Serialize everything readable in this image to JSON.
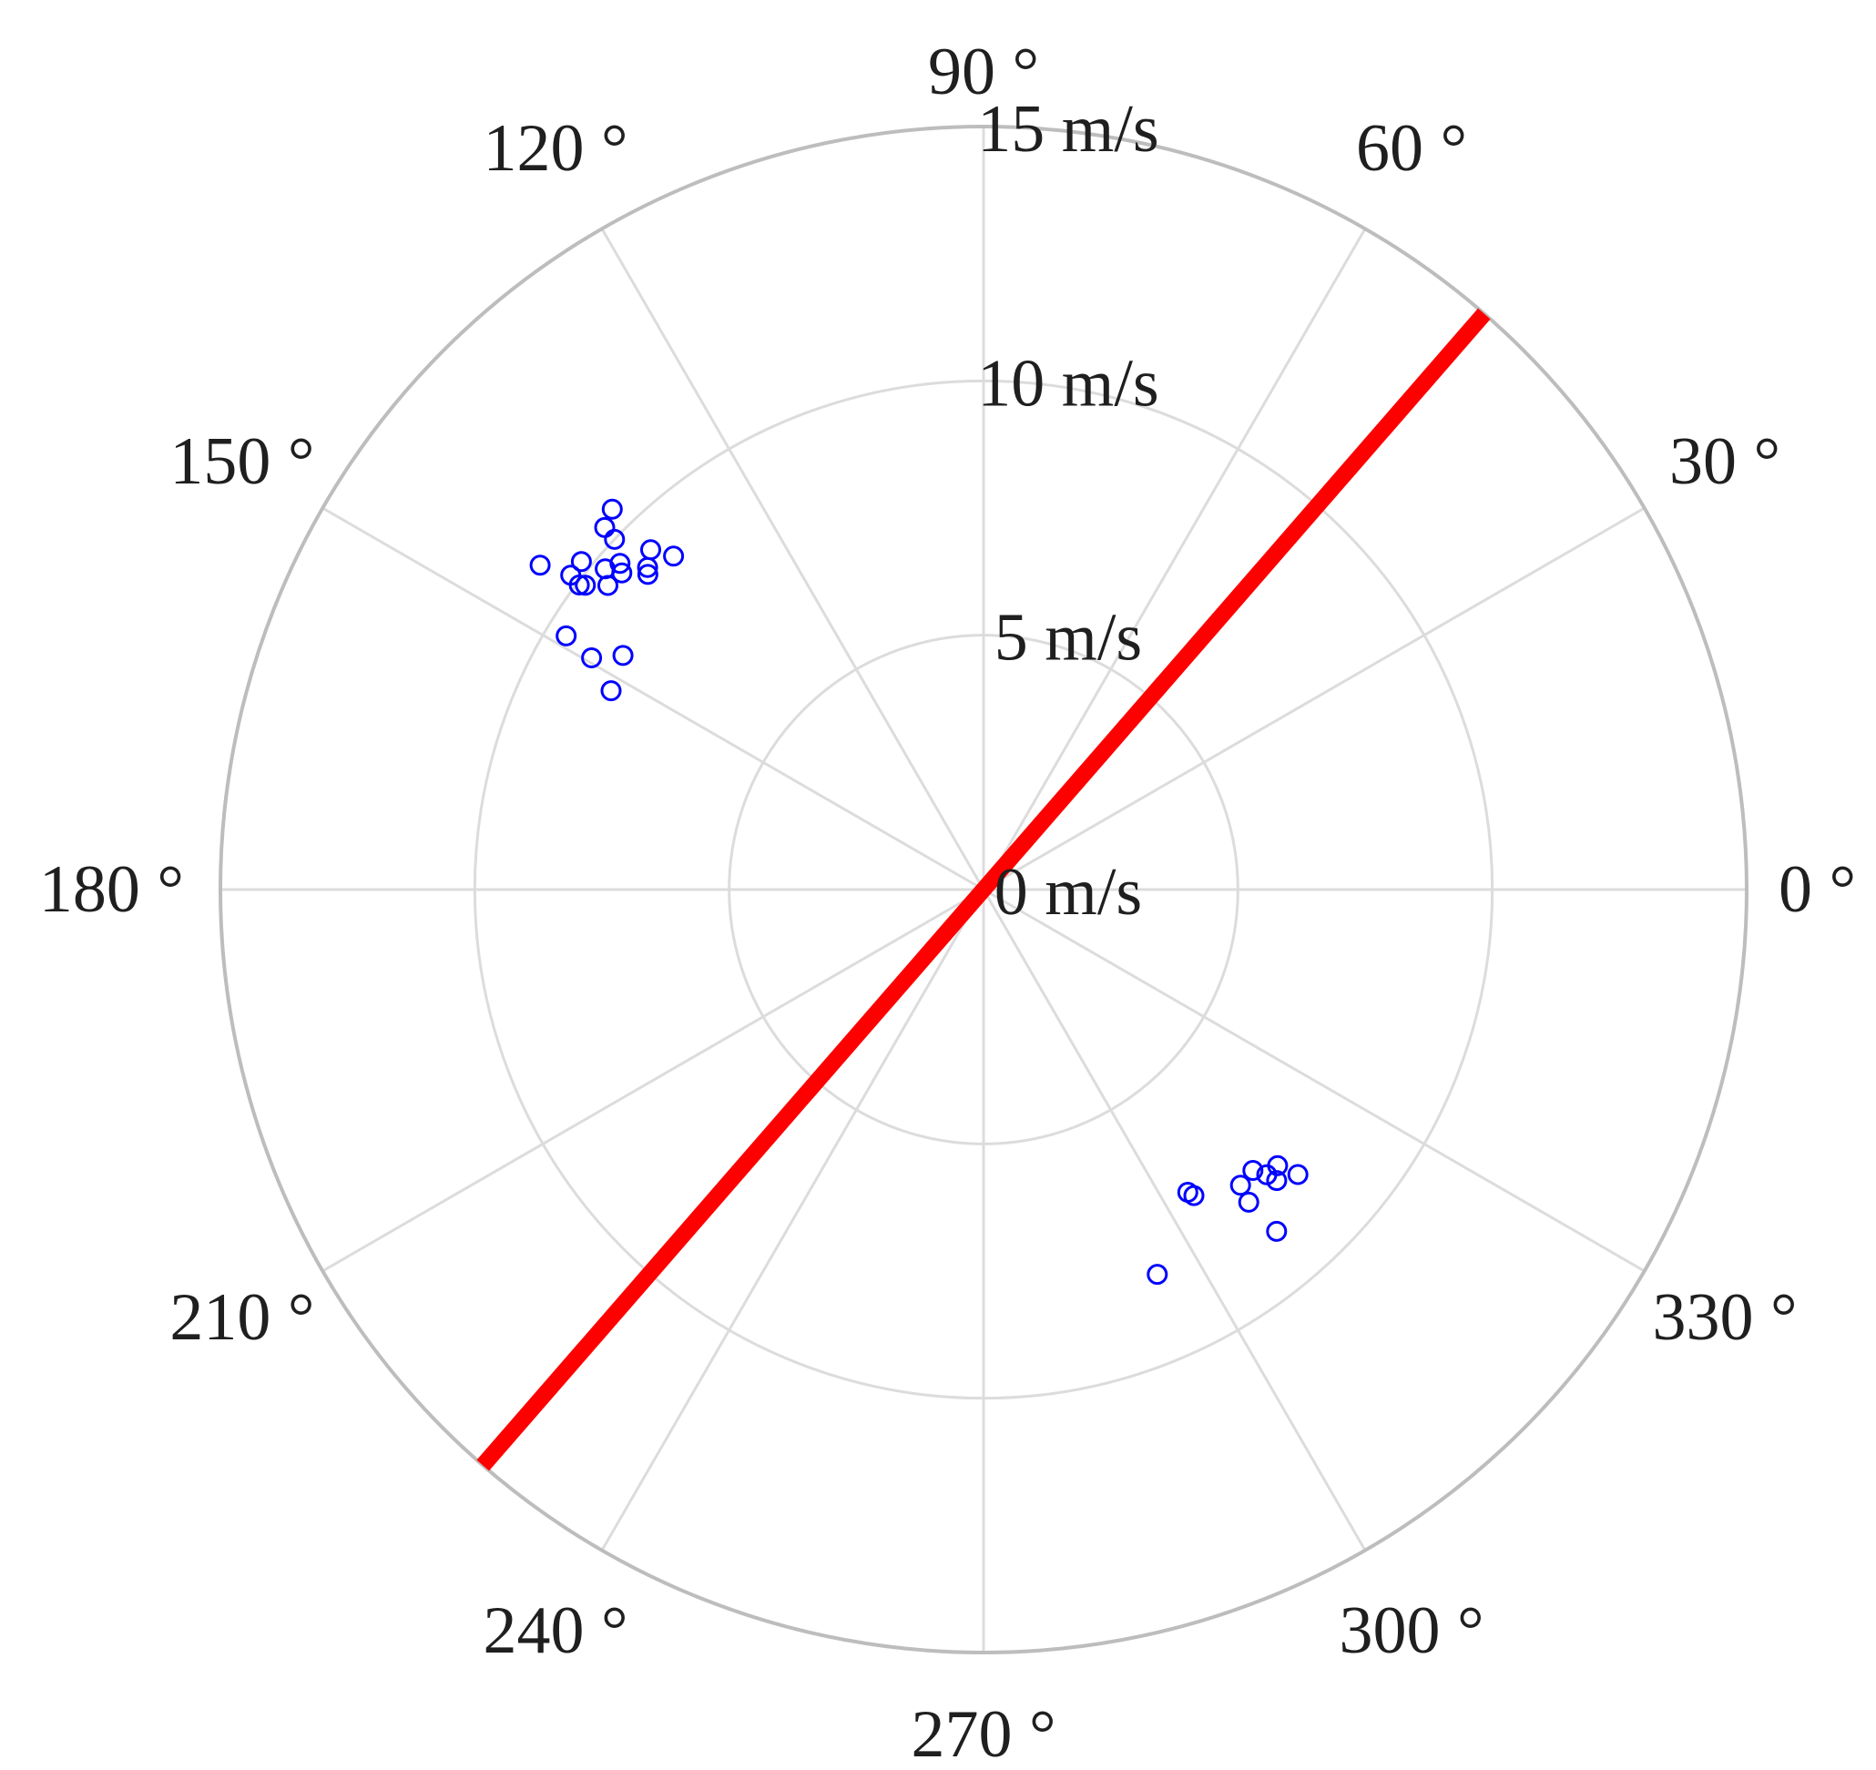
{
  "chart_data": {
    "type": "scatter",
    "coordinate_system": "polar",
    "radial_axis": {
      "range": [
        0,
        15
      ],
      "unit": "m/s",
      "ticks": [
        0,
        5,
        10,
        15
      ],
      "tick_labels": [
        "0 m/s",
        "5 m/s",
        "10 m/s",
        "15 m/s"
      ],
      "label_angle_deg": 90
    },
    "angular_axis": {
      "unit": "degrees",
      "zero_direction": "right",
      "direction": "counterclockwise",
      "ticks": [
        0,
        30,
        60,
        90,
        120,
        150,
        180,
        210,
        240,
        270,
        300,
        330
      ],
      "tick_labels": [
        "0 °",
        "30 °",
        "60 °",
        "90 °",
        "120 °",
        "150 °",
        "180 °",
        "210 °",
        "240 °",
        "270 °",
        "300 °",
        "330 °"
      ]
    },
    "grid": true,
    "title": "",
    "line": {
      "angles_deg": [
        49,
        229
      ],
      "radius": 15,
      "color": "#ff0000"
    },
    "series": [
      {
        "marker": "open-circle",
        "color": "#0000ff",
        "points": [
          {
            "theta": 143.8,
            "r": 10.8
          },
          {
            "theta": 142.7,
            "r": 10.2
          },
          {
            "theta": 143.0,
            "r": 9.95
          },
          {
            "theta": 142.6,
            "r": 9.85
          },
          {
            "theta": 140.8,
            "r": 10.2
          },
          {
            "theta": 136.3,
            "r": 10.3
          },
          {
            "theta": 134.3,
            "r": 10.45
          },
          {
            "theta": 136.5,
            "r": 10.0
          },
          {
            "theta": 139.7,
            "r": 9.75
          },
          {
            "theta": 138.8,
            "r": 9.45
          },
          {
            "theta": 138.1,
            "r": 9.6
          },
          {
            "theta": 134.4,
            "r": 9.35
          },
          {
            "theta": 136.2,
            "r": 9.15
          },
          {
            "theta": 136.8,
            "r": 9.05
          },
          {
            "theta": 141.0,
            "r": 9.5
          },
          {
            "theta": 132.9,
            "r": 8.95
          },
          {
            "theta": 148.7,
            "r": 9.6
          },
          {
            "theta": 149.4,
            "r": 8.95
          },
          {
            "theta": 147.0,
            "r": 8.45
          },
          {
            "theta": 151.9,
            "r": 8.3
          },
          {
            "theta": 311.0,
            "r": 7.7
          },
          {
            "theta": 313.8,
            "r": 7.65
          },
          {
            "theta": 314.8,
            "r": 7.9
          },
          {
            "theta": 316.8,
            "r": 7.93
          },
          {
            "theta": 317.8,
            "r": 8.34
          },
          {
            "theta": 315.2,
            "r": 8.12
          },
          {
            "theta": 310.3,
            "r": 8.06
          },
          {
            "theta": 304.5,
            "r": 7.3
          },
          {
            "theta": 304.0,
            "r": 7.18
          },
          {
            "theta": 310.6,
            "r": 8.85
          },
          {
            "theta": 294.3,
            "r": 8.3
          }
        ]
      }
    ]
  }
}
